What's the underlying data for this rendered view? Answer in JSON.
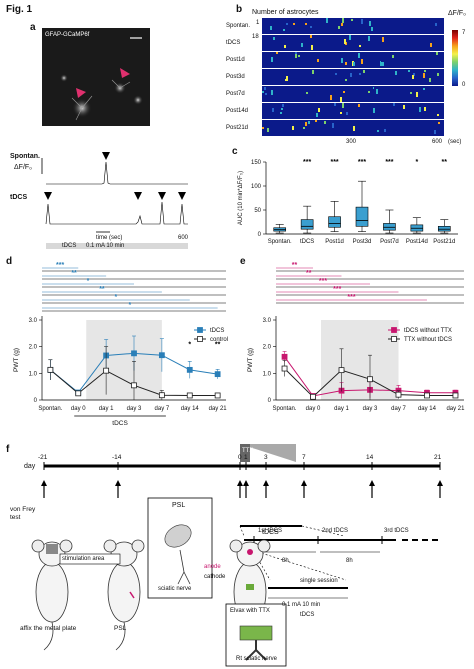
{
  "figure_title": "Fig. 1",
  "panels": {
    "a": "a",
    "b": "b",
    "c": "c",
    "d": "d",
    "e": "e",
    "f": "f"
  },
  "panel_a": {
    "micrograph_label": "GFAP-GCaMP6f",
    "spont_label": "Spontan.",
    "dff_label": "ΔF/F₀",
    "tdcs_label": "tDCS",
    "time_label": "time (sec)",
    "stim_label": "tDCS",
    "stim_params": "0.1 mA  10 min",
    "x_end": "600"
  },
  "panel_b": {
    "header": "Number of astrocytes",
    "rows": [
      "Spontan.",
      "tDCS",
      "Post1d",
      "Post3d",
      "Post7d",
      "Post14d",
      "Post21d"
    ],
    "row_mid_tick": "18",
    "y_tick": "1",
    "x_ticks": [
      "300",
      "600"
    ],
    "x_unit": "(sec)",
    "colorbar_label": "ΔF/F₀",
    "colorbar_ticks": [
      "7",
      "0"
    ]
  },
  "chart_data": [
    {
      "type": "box",
      "id": "c",
      "ylabel": "AUC (10 min*ΔF/F₀)",
      "ylim": [
        0,
        150
      ],
      "yticks": [
        0,
        50,
        100,
        150
      ],
      "categories": [
        "Spontan.",
        "tDCS",
        "Post1d",
        "Post3d",
        "Post7d",
        "Post14d",
        "Post21d"
      ],
      "boxes": [
        {
          "min": 2,
          "q1": 6,
          "median": 9,
          "q3": 13,
          "max": 20
        },
        {
          "min": 2,
          "q1": 10,
          "median": 16,
          "q3": 30,
          "max": 58
        },
        {
          "min": 5,
          "q1": 14,
          "median": 22,
          "q3": 36,
          "max": 68
        },
        {
          "min": 5,
          "q1": 16,
          "median": 28,
          "q3": 56,
          "max": 110
        },
        {
          "min": 2,
          "q1": 8,
          "median": 14,
          "q3": 22,
          "max": 50
        },
        {
          "min": 2,
          "q1": 6,
          "median": 12,
          "q3": 19,
          "max": 34
        },
        {
          "min": 2,
          "q1": 6,
          "median": 10,
          "q3": 16,
          "max": 30
        }
      ],
      "significance": [
        "",
        "***",
        "***",
        "***",
        "***",
        "*",
        "**"
      ],
      "color": "#3a9fd0"
    },
    {
      "type": "line",
      "id": "d",
      "ylabel": "PWT (g)",
      "ylim": [
        0,
        3
      ],
      "yticks": [
        "0",
        "1.0",
        "2.0",
        "3.0"
      ],
      "categories": [
        "Spontan.",
        "day 0",
        "day 1",
        "day 3",
        "day 7",
        "day 14",
        "day 21"
      ],
      "series": [
        {
          "name": "tDCS",
          "values": [
            1.13,
            0.28,
            1.67,
            1.75,
            1.68,
            1.13,
            0.97
          ],
          "err": [
            0.38,
            0.05,
            0.6,
            0.65,
            0.62,
            0.32,
            0.18
          ],
          "color": "#2a7fb8",
          "marker": "square-filled"
        },
        {
          "name": "control",
          "values": [
            1.13,
            0.25,
            1.1,
            0.55,
            0.18,
            0.17,
            0.17
          ],
          "err": [
            0.38,
            0.05,
            0.9,
            0.9,
            0.18,
            0.03,
            0.03
          ],
          "color": "#222222",
          "marker": "square-open"
        }
      ],
      "xgroup_label": "tDCS",
      "significance_bars": [
        {
          "label": "***",
          "color": "#2a7fb8"
        },
        {
          "label": "**",
          "color": "#2a7fb8"
        },
        {
          "label": "*",
          "color": "#2a7fb8"
        },
        {
          "label": "**",
          "color": "#2a7fb8"
        },
        {
          "label": "*",
          "color": "#2a7fb8"
        },
        {
          "label": "*",
          "color": "#2a7fb8"
        }
      ],
      "point_stars": [
        {
          "x": "day 14",
          "label": "*"
        },
        {
          "x": "day 21",
          "label": "**"
        }
      ]
    },
    {
      "type": "line",
      "id": "e",
      "ylabel": "PWT (g)",
      "ylim": [
        0,
        3
      ],
      "yticks": [
        "0",
        "1.0",
        "2.0",
        "3.0"
      ],
      "categories": [
        "Spontan.",
        "day 0",
        "day 1",
        "day 3",
        "day 7",
        "day 14",
        "day 21"
      ],
      "series": [
        {
          "name": "tDCS without TTX",
          "values": [
            1.62,
            0.15,
            0.35,
            0.38,
            0.35,
            0.27,
            0.27
          ],
          "err": [
            0.2,
            0.05,
            0.3,
            0.3,
            0.2,
            0.1,
            0.1
          ],
          "color": "#c8166e",
          "marker": "square-filled"
        },
        {
          "name": "TTX without tDCS",
          "values": [
            1.18,
            0.12,
            1.12,
            0.78,
            0.2,
            0.17,
            0.17
          ],
          "err": [
            0.3,
            0.05,
            0.8,
            0.9,
            0.15,
            0.05,
            0.05
          ],
          "color": "#222222",
          "marker": "square-open"
        }
      ],
      "significance_bars": [
        {
          "label": "**",
          "color": "#c8166e"
        },
        {
          "label": "**",
          "color": "#c8166e"
        },
        {
          "label": "***",
          "color": "#c8166e"
        },
        {
          "label": "***",
          "color": "#c8166e"
        },
        {
          "label": "***",
          "color": "#c8166e"
        }
      ]
    }
  ],
  "panel_f": {
    "day_label": "day",
    "ticks": [
      "-21",
      "-14",
      "0",
      "1",
      "3",
      "7",
      "14",
      "21"
    ],
    "von_frey": "von Frey\ntest",
    "ttx": "TTX",
    "tdcs": "tDCS",
    "psl": "PSL",
    "sciatic": "sciatic nerve",
    "stim_area": "stimulation area",
    "affix": "affix the metal plate",
    "psl2": "PSL",
    "anode": "anode",
    "cathode": "cathode",
    "elvax": "Elvax with TTX",
    "rt_sciatic": "Rt sciatic nerve",
    "first": "1st tDCS",
    "second": "2nd tDCS",
    "third": "3rd tDCS",
    "eight1": "8h",
    "eight2": "8h",
    "single": "single session",
    "single_params": "0.1 mA 10 min",
    "single_tdcs": "tDCS"
  }
}
